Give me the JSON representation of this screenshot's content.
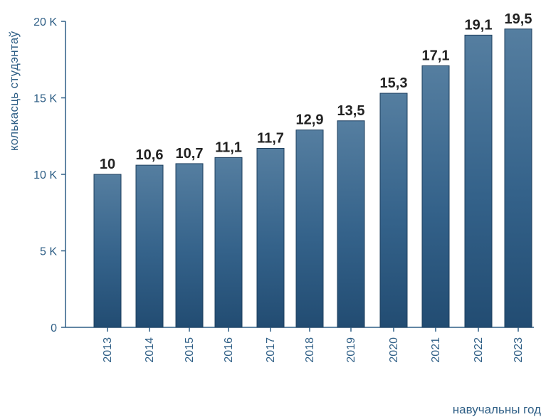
{
  "chart_data": {
    "type": "bar",
    "ylabel": "колькасць студэнтаў",
    "xlabel": "навучальны год",
    "categories": [
      "2013",
      "2014",
      "2015",
      "2016",
      "2017",
      "2018",
      "2019",
      "2020",
      "2021",
      "2022",
      "2023"
    ],
    "values": [
      10,
      10.6,
      10.7,
      11.1,
      11.7,
      12.9,
      13.5,
      15.3,
      17.1,
      19.1,
      19.5
    ],
    "data_labels": [
      "10",
      "10,6",
      "10,7",
      "11,1",
      "11,7",
      "12,9",
      "13,5",
      "15,3",
      "17,1",
      "19,1",
      "19,5"
    ],
    "ylim": [
      0,
      20
    ],
    "yticks": [
      0,
      5,
      10,
      15,
      20
    ],
    "ytick_labels": [
      "0",
      "5 K",
      "10 K",
      "15 K",
      "20 K"
    ],
    "grid": false,
    "colors": {
      "bar": "#3a6890",
      "bar_dark": "#224c72",
      "axis_text": "#2f5f86",
      "label": "#222222",
      "map": "#8a9fc0"
    }
  }
}
